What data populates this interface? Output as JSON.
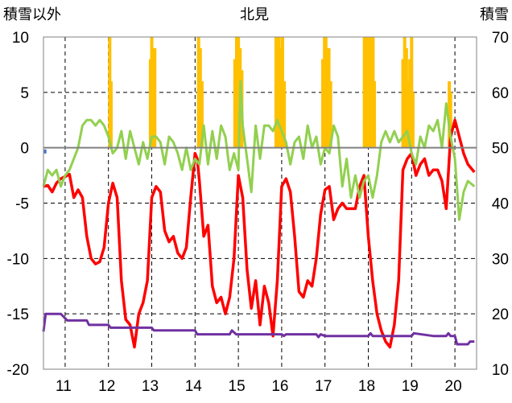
{
  "chart_data": {
    "type": "line",
    "title": "北見",
    "left_axis_label": "積雪以外",
    "right_axis_label": "積雪",
    "left_ylim": [
      -20,
      10
    ],
    "left_yticks": [
      10,
      5,
      0,
      -5,
      -10,
      -15,
      -20
    ],
    "right_ylim": [
      10,
      70
    ],
    "right_yticks": [
      70,
      60,
      50,
      40,
      30,
      20,
      10
    ],
    "x_ticks": [
      "11",
      "12",
      "13",
      "14",
      "15",
      "16",
      "17",
      "18",
      "19",
      "20"
    ],
    "xlim": [
      10.5,
      20.5
    ],
    "grid": true,
    "colors": {
      "precip": "#ffc000",
      "temp": "#ff0000",
      "green": "#92d050",
      "snow": "#7030a0",
      "marker": "#4472c4",
      "grid": "#000000"
    },
    "series": [
      {
        "kind": "bars",
        "axis": "left",
        "color": "#ffc000",
        "x": [
          12.03,
          12.06,
          12.97,
          13.0,
          13.03,
          13.07,
          14.08,
          14.12,
          14.16,
          14.92,
          14.96,
          15.0,
          15.04,
          15.08,
          15.87,
          15.9,
          15.94,
          15.98,
          16.02,
          16.06,
          16.95,
          16.99,
          17.02,
          17.06,
          17.09,
          17.13,
          17.91,
          17.95,
          17.99,
          18.03,
          18.07,
          18.11,
          18.14,
          18.8,
          18.84,
          18.88,
          18.92,
          18.96,
          19.0,
          19.03,
          19.87,
          19.9
        ],
        "values": [
          10,
          6,
          8,
          10,
          6,
          9,
          10,
          9,
          6,
          8,
          10,
          10,
          9,
          7,
          10,
          10,
          10,
          9,
          10,
          6,
          8,
          10,
          10,
          8,
          9,
          6,
          10,
          10,
          10,
          10,
          10,
          10,
          6,
          8,
          10,
          9,
          6,
          8,
          10,
          5,
          6,
          5
        ]
      },
      {
        "kind": "line",
        "axis": "left",
        "color": "#ff0000",
        "x": [
          10.5,
          10.6,
          10.7,
          10.8,
          10.9,
          11.0,
          11.1,
          11.2,
          11.3,
          11.4,
          11.5,
          11.6,
          11.7,
          11.8,
          11.9,
          12.0,
          12.1,
          12.2,
          12.3,
          12.4,
          12.5,
          12.6,
          12.7,
          12.8,
          12.9,
          13.0,
          13.1,
          13.2,
          13.3,
          13.4,
          13.5,
          13.6,
          13.7,
          13.8,
          13.9,
          14.0,
          14.05,
          14.1,
          14.2,
          14.3,
          14.4,
          14.5,
          14.6,
          14.7,
          14.8,
          14.9,
          15.0,
          15.1,
          15.2,
          15.3,
          15.4,
          15.5,
          15.6,
          15.7,
          15.8,
          15.9,
          16.0,
          16.1,
          16.2,
          16.3,
          16.4,
          16.5,
          16.6,
          16.7,
          16.8,
          16.9,
          17.0,
          17.1,
          17.2,
          17.3,
          17.4,
          17.5,
          17.6,
          17.7,
          17.8,
          17.9,
          18.0,
          18.1,
          18.2,
          18.3,
          18.4,
          18.5,
          18.6,
          18.7,
          18.8,
          18.9,
          19.0,
          19.1,
          19.2,
          19.3,
          19.4,
          19.5,
          19.6,
          19.7,
          19.8,
          19.9,
          20.0,
          20.1,
          20.2,
          20.3,
          20.45
        ],
        "values": [
          -3.5,
          -3.4,
          -4.0,
          -3.2,
          -2.8,
          -2.6,
          -2.4,
          -4.5,
          -3.8,
          -4.5,
          -8.0,
          -10.0,
          -10.5,
          -10.3,
          -9.0,
          -5.0,
          -3.2,
          -4.5,
          -12.0,
          -15.5,
          -16.0,
          -18.0,
          -15.0,
          -14.0,
          -12.0,
          -4.5,
          -3.5,
          -4.0,
          -7.5,
          -8.5,
          -8.0,
          -9.5,
          -10.0,
          -9.0,
          -4.5,
          -0.5,
          -1.0,
          -3.0,
          -8.0,
          -7.0,
          -12.5,
          -14.0,
          -13.5,
          -15.0,
          -13.5,
          -10.0,
          -2.5,
          -4.5,
          -11.0,
          -14.5,
          -12.0,
          -16.0,
          -12.5,
          -14.0,
          -17.0,
          -12.0,
          -3.5,
          -2.8,
          -4.0,
          -8.0,
          -13.0,
          -13.5,
          -12.0,
          -12.5,
          -10.0,
          -6.0,
          -3.8,
          -3.5,
          -6.5,
          -5.5,
          -5.0,
          -5.5,
          -5.5,
          -5.5,
          -3.5,
          -2.5,
          -8.0,
          -12.0,
          -15.0,
          -16.5,
          -17.5,
          -18.0,
          -16.0,
          -12.0,
          -2.0,
          -1.0,
          -0.5,
          -2.5,
          -1.5,
          -1.0,
          -2.5,
          -2.0,
          -2.0,
          -3.0,
          -5.5,
          1.0,
          2.5,
          1.0,
          -0.5,
          -1.5,
          -2.2
        ]
      },
      {
        "kind": "line",
        "axis": "left",
        "color": "#92d050",
        "x": [
          10.5,
          10.6,
          10.7,
          10.8,
          10.9,
          11.0,
          11.1,
          11.2,
          11.3,
          11.4,
          11.5,
          11.6,
          11.7,
          11.8,
          11.9,
          12.0,
          12.1,
          12.2,
          12.3,
          12.4,
          12.5,
          12.6,
          12.7,
          12.8,
          12.9,
          13.0,
          13.1,
          13.2,
          13.3,
          13.4,
          13.5,
          13.6,
          13.7,
          13.8,
          13.9,
          14.0,
          14.1,
          14.2,
          14.3,
          14.4,
          14.5,
          14.6,
          14.7,
          14.8,
          14.9,
          15.0,
          15.05,
          15.1,
          15.2,
          15.3,
          15.4,
          15.5,
          15.6,
          15.7,
          15.8,
          15.9,
          16.0,
          16.1,
          16.2,
          16.3,
          16.4,
          16.5,
          16.6,
          16.7,
          16.8,
          16.9,
          17.0,
          17.1,
          17.2,
          17.3,
          17.4,
          17.5,
          17.6,
          17.7,
          17.8,
          17.9,
          18.0,
          18.1,
          18.2,
          18.3,
          18.4,
          18.5,
          18.6,
          18.7,
          18.8,
          18.9,
          19.0,
          19.1,
          19.2,
          19.3,
          19.4,
          19.5,
          19.6,
          19.7,
          19.8,
          19.9,
          20.0,
          20.1,
          20.2,
          20.3,
          20.45
        ],
        "values": [
          -3.5,
          -2.0,
          -2.5,
          -2.0,
          -3.5,
          -2.5,
          -2.0,
          -1.0,
          0.0,
          2.0,
          2.5,
          2.5,
          2.0,
          2.5,
          2.0,
          1.0,
          -0.5,
          0.0,
          1.5,
          -1.0,
          1.5,
          0.0,
          -1.5,
          0.5,
          -1.0,
          1.0,
          1.0,
          0.5,
          -1.5,
          1.0,
          0.5,
          -0.5,
          -2.0,
          0.0,
          -2.0,
          -1.0,
          -1.5,
          2.0,
          -1.5,
          1.5,
          -1.0,
          2.0,
          1.0,
          -2.0,
          -0.5,
          -2.0,
          6.0,
          2.0,
          -1.0,
          -4.0,
          2.0,
          -1.0,
          2.0,
          2.0,
          1.5,
          2.5,
          1.5,
          0.5,
          -1.5,
          0.5,
          1.0,
          -1.0,
          2.0,
          0.0,
          1.0,
          -1.5,
          0.0,
          -0.5,
          2.0,
          1.0,
          -3.5,
          -1.0,
          -4.5,
          -2.5,
          -4.5,
          -3.0,
          -2.5,
          -4.5,
          -2.5,
          0.5,
          1.5,
          0.5,
          1.5,
          0.5,
          1.0,
          1.5,
          -0.5,
          -1.5,
          1.0,
          0.0,
          2.0,
          1.5,
          2.5,
          0.0,
          4.0,
          1.0,
          -1.0,
          -6.5,
          -4.0,
          -3.0,
          -3.5
        ]
      },
      {
        "kind": "line",
        "axis": "right",
        "color": "#7030a0",
        "x": [
          10.5,
          10.55,
          10.7,
          10.9,
          11.0,
          11.05,
          11.1,
          11.5,
          11.55,
          12.0,
          12.05,
          12.5,
          13.0,
          13.05,
          13.5,
          14.0,
          14.05,
          14.8,
          14.85,
          14.95,
          15.0,
          15.5,
          15.6,
          16.0,
          16.05,
          16.1,
          16.8,
          16.85,
          16.9,
          17.0,
          17.5,
          17.6,
          18.0,
          18.05,
          18.1,
          18.5,
          18.6,
          19.0,
          19.05,
          19.5,
          19.8,
          19.85,
          19.9,
          20.0,
          20.05,
          20.3,
          20.35,
          20.45
        ],
        "values": [
          16.8,
          20.0,
          20.0,
          20.0,
          19.2,
          18.8,
          18.8,
          18.8,
          18.0,
          18.0,
          17.5,
          17.5,
          17.5,
          17.0,
          17.0,
          17.0,
          16.3,
          16.3,
          17.0,
          16.3,
          16.3,
          16.3,
          16.3,
          16.3,
          16.0,
          16.3,
          16.3,
          15.8,
          16.3,
          16.0,
          16.0,
          16.0,
          16.0,
          16.5,
          16.0,
          16.0,
          16.0,
          16.0,
          16.5,
          16.0,
          16.0,
          16.5,
          16.0,
          16.0,
          14.5,
          14.5,
          15.0,
          15.0
        ]
      },
      {
        "kind": "marker",
        "axis": "left",
        "color": "#4472c4",
        "x": [
          10.54
        ],
        "values": [
          -0.3
        ]
      }
    ]
  }
}
